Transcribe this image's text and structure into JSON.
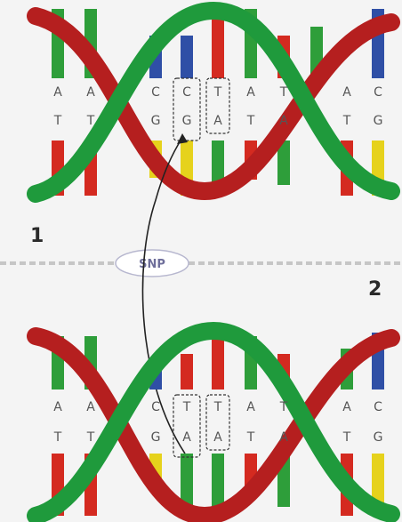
{
  "panels": [
    {
      "number": "1",
      "top_bases": [
        "A",
        "A",
        "C",
        "C",
        "T",
        "A",
        "T",
        "A",
        "C"
      ],
      "bottom_bases": [
        "T",
        "T",
        "G",
        "G",
        "A",
        "T",
        "A",
        "T",
        "G"
      ]
    },
    {
      "number": "2",
      "top_bases": [
        "A",
        "A",
        "C",
        "T",
        "T",
        "A",
        "T",
        "A",
        "C"
      ],
      "bottom_bases": [
        "T",
        "T",
        "G",
        "A",
        "A",
        "T",
        "A",
        "T",
        "G"
      ]
    }
  ],
  "snp_label": "SNP",
  "colors": {
    "A": "#2e9e3a",
    "T": "#d42a20",
    "C": "#2f4fa6",
    "G": "#e6d21c",
    "backbone_green": "#1f9a3c",
    "backbone_red": "#b51f1f",
    "divider": "#c6c6c6"
  }
}
